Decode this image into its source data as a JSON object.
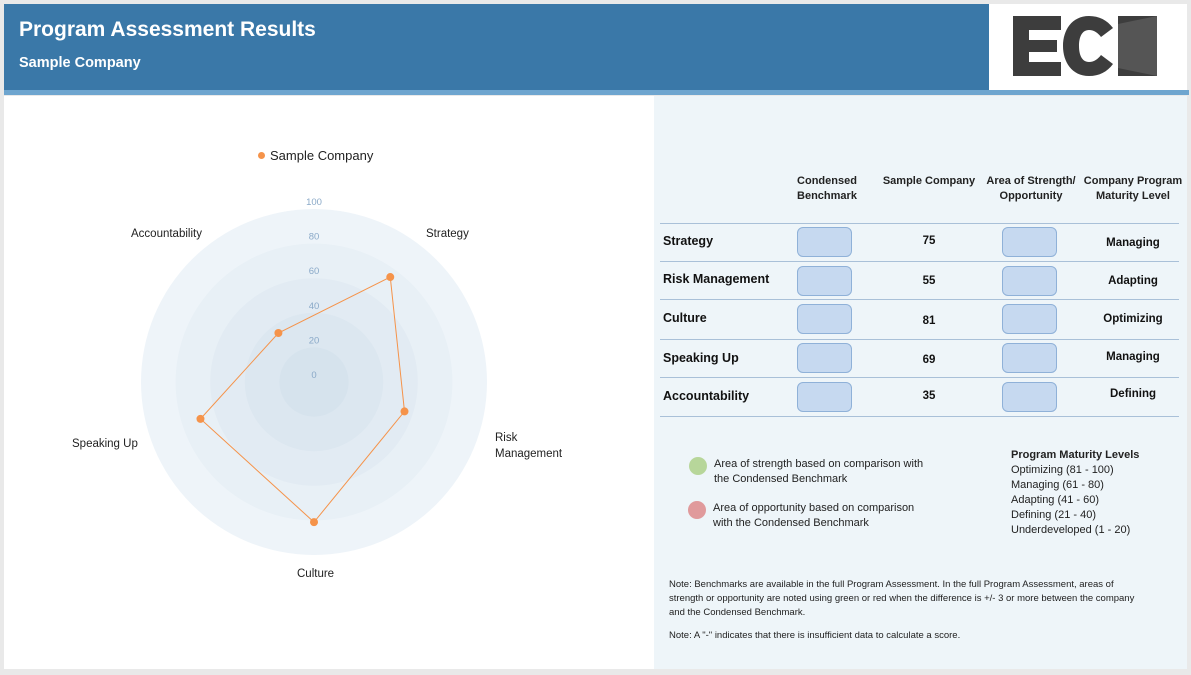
{
  "header": {
    "title": "Program Assessment Results",
    "subtitle": "Sample Company",
    "logo_text": "ECI"
  },
  "chart_data": {
    "type": "radar",
    "legend": [
      "Sample Company"
    ],
    "series": [
      {
        "name": "Sample Company",
        "values": [
          75,
          55,
          81,
          69,
          35
        ],
        "color": "#f5934a"
      }
    ],
    "categories": [
      "Strategy",
      "Risk Management",
      "Culture",
      "Speaking Up",
      "Accountability"
    ],
    "range": [
      0,
      100
    ],
    "ticks": [
      "0",
      "20",
      "40",
      "60",
      "80",
      "100"
    ]
  },
  "table": {
    "headers": [
      "Condensed Benchmark",
      "Sample Company",
      "Area of Strength/ Opportunity",
      "Company Program Maturity Level"
    ],
    "rows": [
      {
        "label": "Strategy",
        "score": "75",
        "level": "Managing"
      },
      {
        "label": "Risk Management",
        "score": "55",
        "level": "Adapting"
      },
      {
        "label": "Culture",
        "score": "81",
        "level": "Optimizing"
      },
      {
        "label": "Speaking Up",
        "score": "69",
        "level": "Managing"
      },
      {
        "label": "Accountability",
        "score": "35",
        "level": "Defining"
      }
    ]
  },
  "key": {
    "strength": "Area of strength based on comparison with the Condensed Benchmark",
    "opportunity": "Area of opportunity based on comparison with the Condensed Benchmark",
    "strength_color": "#b7d69a",
    "opportunity_color": "#e09a9c"
  },
  "maturity_levels": {
    "title": "Program Maturity Levels",
    "items": [
      "Optimizing (81 - 100)",
      "Managing (61 - 80)",
      "Adapting (41 - 60)",
      "Defining (21 - 40)",
      "Underdeveloped (1 - 20)"
    ]
  },
  "notes": {
    "note1": "Note: Benchmarks are available in the full Program Assessment. In the full Program Assessment, areas of strength or opportunity are noted using green or red when the difference is +/- 3 or more between the company and the Condensed Benchmark.",
    "note2": "Note: A \"-\" indicates that there is insufficient data to calculate a score."
  }
}
